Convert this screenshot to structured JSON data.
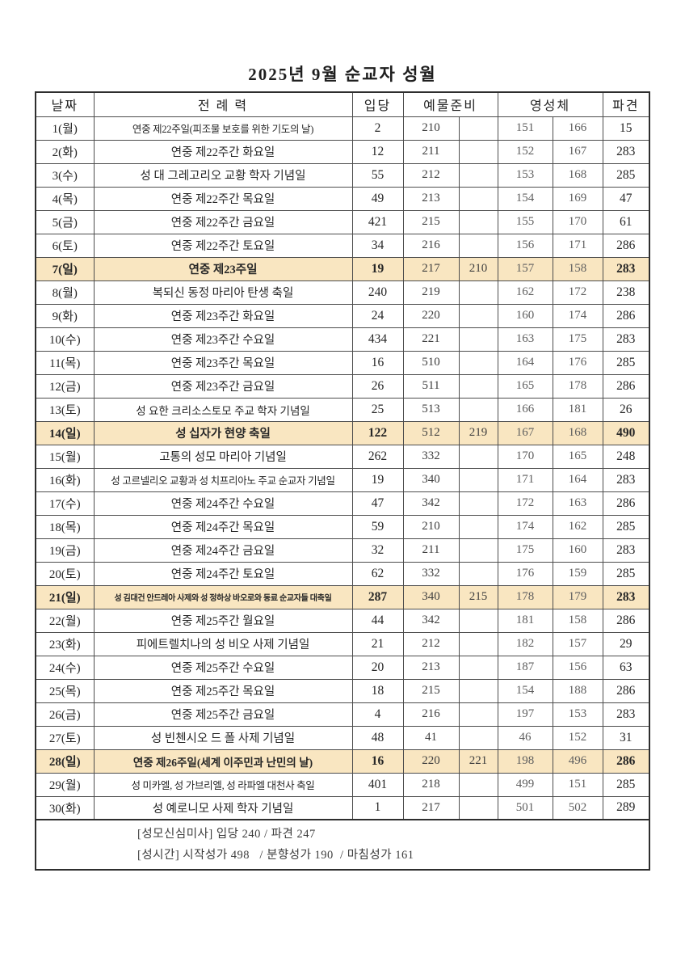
{
  "title": "2025년 9월 순교자 성월",
  "colors": {
    "sunday_row_bg": "#f9e6c1",
    "border": "#4d4d4d",
    "text": "#262626",
    "communion_text": "#5f5f5f"
  },
  "table": {
    "headers": {
      "date": "날짜",
      "liturgy": "전 례 력",
      "entrance": "입당",
      "offertory": "예물준비",
      "communion": "영성체",
      "dismissal": "파견"
    },
    "rows": [
      {
        "date": "1(월)",
        "liturgy": "연중 제22주일(피조물 보호를 위한 기도의 날)",
        "entrance": "2",
        "offertory1": "210",
        "offertory2": "",
        "communion1": "151",
        "communion2": "166",
        "dismissal": "15",
        "highlight": false
      },
      {
        "date": "2(화)",
        "liturgy": "연중 제22주간 화요일",
        "entrance": "12",
        "offertory1": "211",
        "offertory2": "",
        "communion1": "152",
        "communion2": "167",
        "dismissal": "283",
        "highlight": false
      },
      {
        "date": "3(수)",
        "liturgy": "성 대 그레고리오 교황 학자 기념일",
        "entrance": "55",
        "offertory1": "212",
        "offertory2": "",
        "communion1": "153",
        "communion2": "168",
        "dismissal": "285",
        "highlight": false
      },
      {
        "date": "4(목)",
        "liturgy": "연중 제22주간 목요일",
        "entrance": "49",
        "offertory1": "213",
        "offertory2": "",
        "communion1": "154",
        "communion2": "169",
        "dismissal": "47",
        "highlight": false
      },
      {
        "date": "5(금)",
        "liturgy": "연중 제22주간 금요일",
        "entrance": "421",
        "offertory1": "215",
        "offertory2": "",
        "communion1": "155",
        "communion2": "170",
        "dismissal": "61",
        "highlight": false
      },
      {
        "date": "6(토)",
        "liturgy": "연중 제22주간 토요일",
        "entrance": "34",
        "offertory1": "216",
        "offertory2": "",
        "communion1": "156",
        "communion2": "171",
        "dismissal": "286",
        "highlight": false
      },
      {
        "date": "7(일)",
        "liturgy": "연중 제23주일",
        "entrance": "19",
        "offertory1": "217",
        "offertory2": "210",
        "communion1": "157",
        "communion2": "158",
        "dismissal": "283",
        "highlight": true
      },
      {
        "date": "8(월)",
        "liturgy": "복되신 동정 마리아 탄생 축일",
        "entrance": "240",
        "offertory1": "219",
        "offertory2": "",
        "communion1": "162",
        "communion2": "172",
        "dismissal": "238",
        "highlight": false
      },
      {
        "date": "9(화)",
        "liturgy": "연중 제23주간 화요일",
        "entrance": "24",
        "offertory1": "220",
        "offertory2": "",
        "communion1": "160",
        "communion2": "174",
        "dismissal": "286",
        "highlight": false
      },
      {
        "date": "10(수)",
        "liturgy": "연중 제23주간 수요일",
        "entrance": "434",
        "offertory1": "221",
        "offertory2": "",
        "communion1": "163",
        "communion2": "175",
        "dismissal": "283",
        "highlight": false
      },
      {
        "date": "11(목)",
        "liturgy": "연중 제23주간 목요일",
        "entrance": "16",
        "offertory1": "510",
        "offertory2": "",
        "communion1": "164",
        "communion2": "176",
        "dismissal": "285",
        "highlight": false
      },
      {
        "date": "12(금)",
        "liturgy": "연중 제23주간 금요일",
        "entrance": "26",
        "offertory1": "511",
        "offertory2": "",
        "communion1": "165",
        "communion2": "178",
        "dismissal": "286",
        "highlight": false
      },
      {
        "date": "13(토)",
        "liturgy": "성 요한 크리소스토모 주교 학자 기념일",
        "entrance": "25",
        "offertory1": "513",
        "offertory2": "",
        "communion1": "166",
        "communion2": "181",
        "dismissal": "26",
        "highlight": false
      },
      {
        "date": "14(일)",
        "liturgy": "성 십자가 현양 축일",
        "entrance": "122",
        "offertory1": "512",
        "offertory2": "219",
        "communion1": "167",
        "communion2": "168",
        "dismissal": "490",
        "highlight": true
      },
      {
        "date": "15(월)",
        "liturgy": "고통의 성모 마리아 기념일",
        "entrance": "262",
        "offertory1": "332",
        "offertory2": "",
        "communion1": "170",
        "communion2": "165",
        "dismissal": "248",
        "highlight": false
      },
      {
        "date": "16(화)",
        "liturgy": "성 고르넬리오 교황과 성 치프리아노 주교 순교자 기념일",
        "entrance": "19",
        "offertory1": "340",
        "offertory2": "",
        "communion1": "171",
        "communion2": "164",
        "dismissal": "283",
        "highlight": false
      },
      {
        "date": "17(수)",
        "liturgy": "연중 제24주간 수요일",
        "entrance": "47",
        "offertory1": "342",
        "offertory2": "",
        "communion1": "172",
        "communion2": "163",
        "dismissal": "286",
        "highlight": false
      },
      {
        "date": "18(목)",
        "liturgy": "연중 제24주간 목요일",
        "entrance": "59",
        "offertory1": "210",
        "offertory2": "",
        "communion1": "174",
        "communion2": "162",
        "dismissal": "285",
        "highlight": false
      },
      {
        "date": "19(금)",
        "liturgy": "연중 제24주간 금요일",
        "entrance": "32",
        "offertory1": "211",
        "offertory2": "",
        "communion1": "175",
        "communion2": "160",
        "dismissal": "283",
        "highlight": false
      },
      {
        "date": "20(토)",
        "liturgy": "연중 제24주간 토요일",
        "entrance": "62",
        "offertory1": "332",
        "offertory2": "",
        "communion1": "176",
        "communion2": "159",
        "dismissal": "285",
        "highlight": false
      },
      {
        "date": "21(일)",
        "liturgy": "성 김대건 안드레아 사제와 성 정하상 바오로와 동료 순교자들 대축일",
        "entrance": "287",
        "offertory1": "340",
        "offertory2": "215",
        "communion1": "178",
        "communion2": "179",
        "dismissal": "283",
        "highlight": true
      },
      {
        "date": "22(월)",
        "liturgy": "연중 제25주간 월요일",
        "entrance": "44",
        "offertory1": "342",
        "offertory2": "",
        "communion1": "181",
        "communion2": "158",
        "dismissal": "286",
        "highlight": false
      },
      {
        "date": "23(화)",
        "liturgy": "피에트렐치나의 성 비오 사제 기념일",
        "entrance": "21",
        "offertory1": "212",
        "offertory2": "",
        "communion1": "182",
        "communion2": "157",
        "dismissal": "29",
        "highlight": false
      },
      {
        "date": "24(수)",
        "liturgy": "연중 제25주간 수요일",
        "entrance": "20",
        "offertory1": "213",
        "offertory2": "",
        "communion1": "187",
        "communion2": "156",
        "dismissal": "63",
        "highlight": false
      },
      {
        "date": "25(목)",
        "liturgy": "연중 제25주간 목요일",
        "entrance": "18",
        "offertory1": "215",
        "offertory2": "",
        "communion1": "154",
        "communion2": "188",
        "dismissal": "286",
        "highlight": false
      },
      {
        "date": "26(금)",
        "liturgy": "연중 제25주간 금요일",
        "entrance": "4",
        "offertory1": "216",
        "offertory2": "",
        "communion1": "197",
        "communion2": "153",
        "dismissal": "283",
        "highlight": false
      },
      {
        "date": "27(토)",
        "liturgy": "성 빈첸시오 드 폴 사제 기념일",
        "entrance": "48",
        "offertory1": "41",
        "offertory2": "",
        "communion1": "46",
        "communion2": "152",
        "dismissal": "31",
        "highlight": false
      },
      {
        "date": "28(일)",
        "liturgy": "연중 제26주일(세계 이주민과 난민의 날)",
        "entrance": "16",
        "offertory1": "220",
        "offertory2": "221",
        "communion1": "198",
        "communion2": "496",
        "dismissal": "286",
        "highlight": true
      },
      {
        "date": "29(월)",
        "liturgy": "성 미카엘, 성 가브리엘, 성 라파엘 대천사 축일",
        "entrance": "401",
        "offertory1": "218",
        "offertory2": "",
        "communion1": "499",
        "communion2": "151",
        "dismissal": "285",
        "highlight": false
      },
      {
        "date": "30(화)",
        "liturgy": "성 예로니모 사제 학자 기념일",
        "entrance": "1",
        "offertory1": "217",
        "offertory2": "",
        "communion1": "501",
        "communion2": "502",
        "dismissal": "289",
        "highlight": false
      }
    ]
  },
  "footer": {
    "line1": "[성모신심미사] 입당 240 / 파견 247",
    "line2": "[성시간] 시작성가 498   / 분향성가 190  / 마침성가 161"
  }
}
